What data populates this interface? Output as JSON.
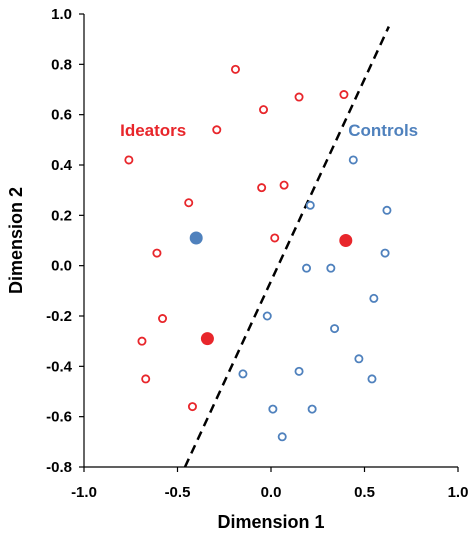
{
  "chart_data": {
    "type": "scatter",
    "xlabel": "Dimension 1",
    "ylabel": "Dimension 2",
    "xlim": [
      -1.0,
      1.0
    ],
    "ylim": [
      -0.8,
      1.0
    ],
    "xticks": [
      "-1.0",
      "-0.5",
      "0.0",
      "0.5",
      "1.0"
    ],
    "yticks": [
      "-0.8",
      "-0.6",
      "-0.4",
      "-0.2",
      "0.0",
      "0.2",
      "0.4",
      "0.6",
      "0.8",
      "1.0"
    ],
    "grid": false,
    "annotations": [
      {
        "text": "Ideators",
        "color": "#e8262b",
        "x": -0.63,
        "y": 0.54
      },
      {
        "text": "Controls",
        "color": "#4f81bd",
        "x": 0.6,
        "y": 0.54
      }
    ],
    "series": [
      {
        "color": "#e8262b",
        "marker": "open-circle",
        "x": [
          -0.19,
          -0.04,
          0.15,
          0.39,
          -0.29,
          -0.76,
          -0.05,
          0.07,
          -0.44,
          0.02,
          -0.61,
          -0.58,
          -0.69,
          -0.67,
          -0.42
        ],
        "y": [
          0.78,
          0.62,
          0.67,
          0.68,
          0.54,
          0.42,
          0.31,
          0.32,
          0.25,
          0.11,
          0.05,
          -0.21,
          -0.3,
          -0.45,
          -0.56
        ]
      },
      {
        "color": "#4f81bd",
        "marker": "open-circle",
        "x": [
          0.44,
          0.21,
          0.62,
          0.61,
          0.19,
          0.32,
          0.55,
          -0.02,
          0.34,
          0.47,
          -0.15,
          0.15,
          0.54,
          0.01,
          0.22,
          0.06
        ],
        "y": [
          0.42,
          0.24,
          0.22,
          0.05,
          -0.01,
          -0.01,
          -0.13,
          -0.2,
          -0.25,
          -0.37,
          -0.43,
          -0.42,
          -0.45,
          -0.57,
          -0.57,
          -0.68
        ]
      },
      {
        "color": "#e8262b",
        "marker": "filled-circle",
        "x": [
          0.4,
          -0.34
        ],
        "y": [
          0.1,
          -0.29
        ]
      },
      {
        "color": "#4f81bd",
        "marker": "filled-circle",
        "x": [
          -0.4
        ],
        "y": [
          0.11
        ]
      }
    ],
    "boundary": {
      "color": "#000000",
      "style": "dashed",
      "x": [
        -0.46,
        0.63
      ],
      "y": [
        -0.8,
        0.95
      ]
    }
  }
}
